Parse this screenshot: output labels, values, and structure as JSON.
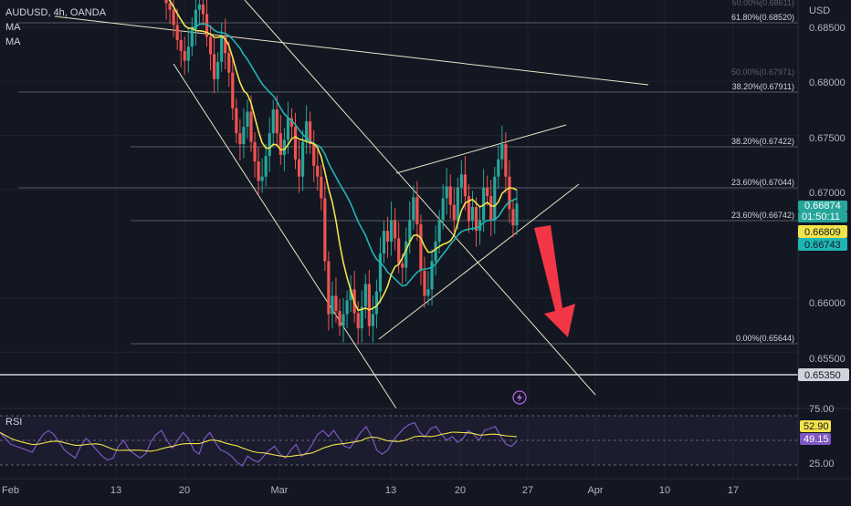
{
  "header": {
    "symbol_line": "AUDUSD, 4h, OANDA",
    "ma1": "MA",
    "ma2": "MA"
  },
  "currency": "USD",
  "rsi_label": "RSI",
  "colors": {
    "background": "#131722",
    "up": "#26a69a",
    "down": "#ef5350",
    "ma_fast": "#f2e34a",
    "ma_slow": "#1fb5b5",
    "rsi": "#7e57c2",
    "rsi_ma": "#f2e34a",
    "arrow": "#f23645",
    "trendline": "#e9e4c4"
  },
  "price_axis": {
    "ticks": [
      "0.68500",
      "0.68000",
      "0.67500",
      "0.67000",
      "0.66000",
      "0.65500"
    ],
    "ticks_hidden": [
      "0.66500"
    ],
    "labels": [
      {
        "text": "0.66874",
        "kind": "last",
        "bg": "#26a69a",
        "fg": "#ffffff"
      },
      {
        "text": "01:50:11",
        "kind": "countdown",
        "bg": "#26a69a",
        "fg": "#ffffff"
      },
      {
        "text": "0.66809",
        "kind": "ma_fast",
        "bg": "#f2e34a",
        "fg": "#131722"
      },
      {
        "text": "0.66743",
        "kind": "ma_slow",
        "bg": "#1fb5b5",
        "fg": "#131722"
      },
      {
        "text": "0.65350",
        "kind": "hline",
        "bg": "#d1d4dc",
        "fg": "#131722"
      }
    ]
  },
  "rsi_axis": {
    "ticks": [
      "75.00",
      "25.00"
    ],
    "labels": [
      {
        "text": "52.90",
        "bg": "#f2e34a",
        "fg": "#131722"
      },
      {
        "text": "49.15",
        "bg": "#7e57c2",
        "fg": "#ffffff"
      }
    ]
  },
  "time_axis": [
    "Feb",
    "13",
    "20",
    "Mar",
    "13",
    "20",
    "27",
    "Apr",
    "10",
    "17"
  ],
  "fib_levels": [
    {
      "text": "50.00%(0.68611)",
      "faint": true
    },
    {
      "text": "61.80%(0.68520)",
      "faint": false
    },
    {
      "text": "50.00%(0.67971)",
      "faint": true
    },
    {
      "text": "38.20%(0.67911)",
      "faint": false
    },
    {
      "text": "38.20%(0.67422)",
      "faint": false
    },
    {
      "text": "23.60%(0.67044)",
      "faint": false
    },
    {
      "text": "23.60%(0.66742)",
      "faint": false
    },
    {
      "text": "0.00%(0.65644)",
      "faint": false
    }
  ],
  "chart_data": {
    "type": "candlestick",
    "symbol": "AUDUSD",
    "timeframe": "4h",
    "ylim": [
      0.6505,
      0.6875
    ],
    "last_price": 0.66874,
    "ma_fast_last": 0.66809,
    "ma_slow_last": 0.66743,
    "horizontal_line": 0.6535,
    "rsi_last": 49.15,
    "rsi_ma_last": 52.9,
    "rsi_range": [
      25,
      75
    ],
    "closes": [
      0.6885,
      0.6872,
      0.6866,
      0.6852,
      0.6838,
      0.6828,
      0.6819,
      0.6832,
      0.6848,
      0.6866,
      0.6871,
      0.6862,
      0.6841,
      0.6825,
      0.6802,
      0.6818,
      0.6841,
      0.6826,
      0.6808,
      0.6775,
      0.6752,
      0.6742,
      0.6758,
      0.6772,
      0.6744,
      0.6726,
      0.6708,
      0.6712,
      0.6731,
      0.6752,
      0.6774,
      0.6752,
      0.6732,
      0.6746,
      0.6766,
      0.6758,
      0.6728,
      0.6712,
      0.6744,
      0.6763,
      0.6742,
      0.6722,
      0.6712,
      0.6692,
      0.6634,
      0.6585,
      0.6602,
      0.6588,
      0.6574,
      0.6585,
      0.6598,
      0.6608,
      0.6586,
      0.6572,
      0.6592,
      0.6613,
      0.6574,
      0.6585,
      0.6606,
      0.6641,
      0.6662,
      0.6652,
      0.6672,
      0.6655,
      0.6632,
      0.6628,
      0.6652,
      0.6672,
      0.6693,
      0.6668,
      0.6625,
      0.6602,
      0.6608,
      0.6634,
      0.6652,
      0.6672,
      0.6692,
      0.6703,
      0.6686,
      0.6672,
      0.6702,
      0.6714,
      0.6694,
      0.6671,
      0.6684,
      0.6662,
      0.6672,
      0.6702,
      0.6694,
      0.6672,
      0.6712,
      0.6728,
      0.6742,
      0.6712,
      0.6682,
      0.6667,
      0.6687
    ],
    "rsi": [
      58,
      52,
      46,
      44,
      42,
      40,
      38,
      48,
      56,
      60,
      56,
      48,
      40,
      36,
      32,
      44,
      52,
      46,
      40,
      34,
      30,
      32,
      44,
      50,
      40,
      36,
      32,
      36,
      48,
      56,
      60,
      50,
      42,
      50,
      58,
      52,
      40,
      36,
      52,
      58,
      48,
      40,
      38,
      34,
      28,
      24,
      34,
      30,
      28,
      34,
      40,
      44,
      36,
      32,
      40,
      46,
      34,
      38,
      46,
      56,
      60,
      54,
      60,
      52,
      44,
      42,
      50,
      58,
      64,
      54,
      40,
      36,
      40,
      50,
      56,
      62,
      66,
      68,
      58,
      54,
      62,
      64,
      56,
      50,
      54,
      48,
      52,
      60,
      56,
      50,
      60,
      62,
      64,
      54,
      46,
      44,
      49.15
    ]
  }
}
